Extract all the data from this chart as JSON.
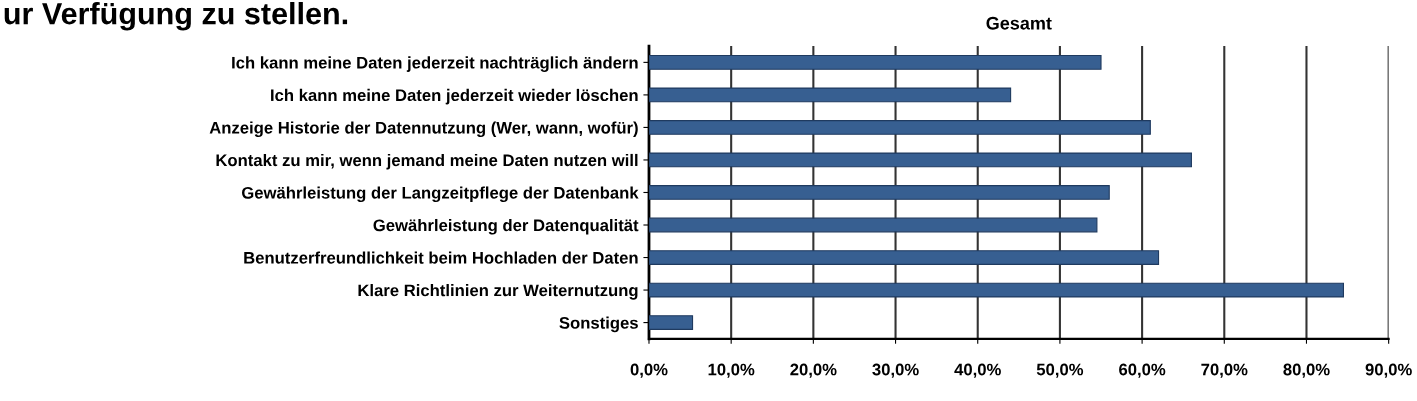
{
  "chart_data": {
    "type": "bar",
    "orientation": "horizontal",
    "title": "Gesamt",
    "annotations": [
      "ur Verfügung zu stellen."
    ],
    "categories": [
      "Ich kann meine Daten jederzeit nachträglich ändern",
      "Ich kann meine Daten jederzeit wieder löschen",
      "Anzeige Historie der Datennutzung (Wer, wann, wofür)",
      "Kontakt zu mir, wenn jemand meine Daten nutzen will",
      "Gewährleistung der Langzeitpflege der Datenbank",
      "Gewährleistung der Datenqualität",
      "Benutzerfreundlichkeit beim Hochladen der Daten",
      "Klare Richtlinien zur Weiternutzung",
      "Sonstiges"
    ],
    "values": [
      55,
      44,
      61,
      66,
      56,
      54.5,
      62,
      84.5,
      5.3
    ],
    "color": "#375f91",
    "xlim": [
      0,
      90
    ],
    "xticks": [
      {
        "value": 0,
        "label": "0,0%"
      },
      {
        "value": 10,
        "label": "10,0%"
      },
      {
        "value": 20,
        "label": "20,0%"
      },
      {
        "value": 30,
        "label": "30,0%"
      },
      {
        "value": 40,
        "label": "40,0%"
      },
      {
        "value": 50,
        "label": "50,0%"
      },
      {
        "value": 60,
        "label": "60,0%"
      },
      {
        "value": 70,
        "label": "70,0%"
      },
      {
        "value": 80,
        "label": "80,0%"
      },
      {
        "value": 90,
        "label": "90,0%"
      }
    ],
    "grid": "x",
    "legend": false
  }
}
